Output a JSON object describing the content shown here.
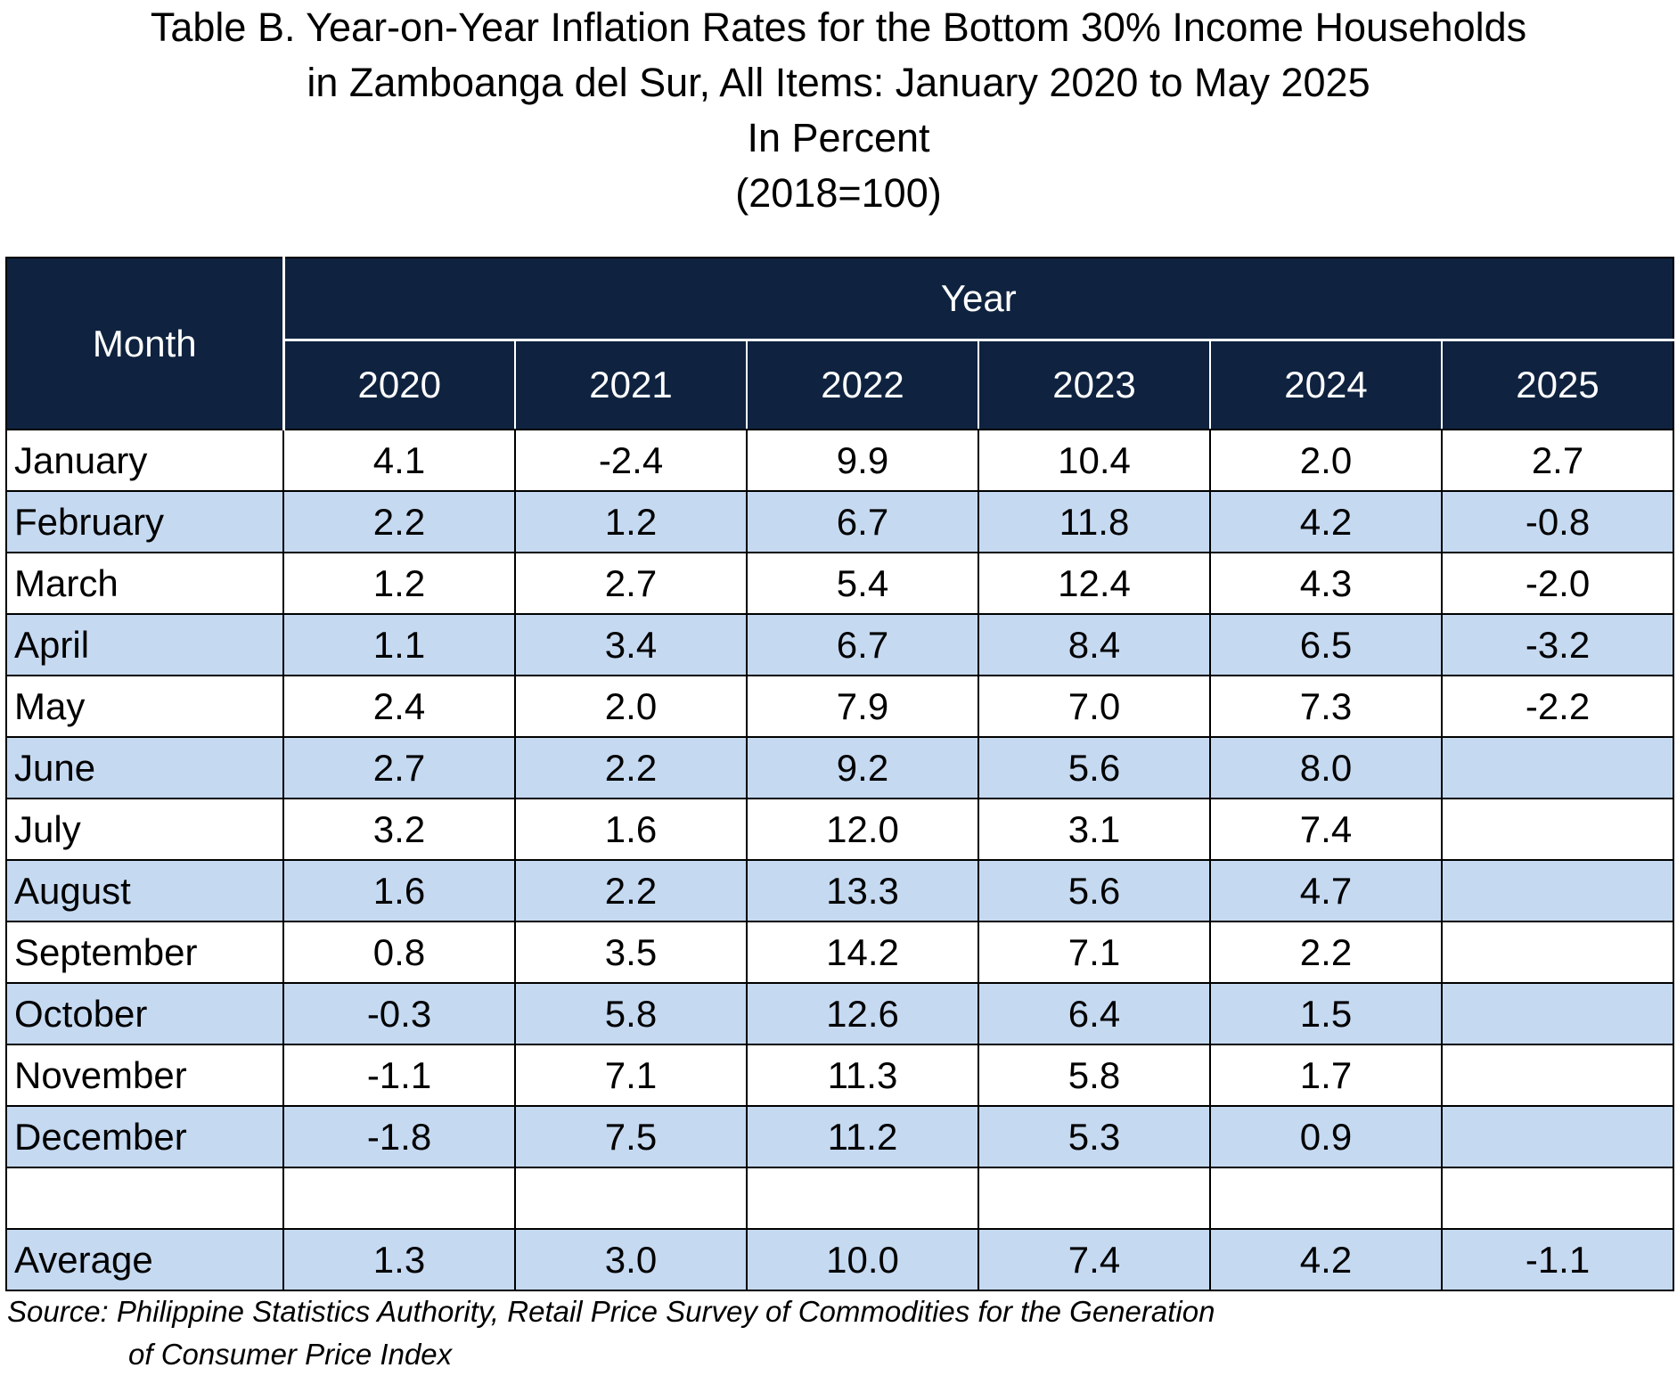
{
  "title": {
    "line1": "Table B. Year-on-Year Inflation Rates for the Bottom 30% Income Households",
    "line2": "in Zamboanga del Sur, All Items: January 2020 to May 2025",
    "line3": "In Percent",
    "line4": "(2018=100)"
  },
  "table": {
    "month_header": "Month",
    "year_header": "Year",
    "years": [
      "2020",
      "2021",
      "2022",
      "2023",
      "2024",
      "2025"
    ],
    "rows": [
      {
        "month": "January",
        "values": [
          "4.1",
          "-2.4",
          "9.9",
          "10.4",
          "2.0",
          "2.7"
        ]
      },
      {
        "month": "February",
        "values": [
          "2.2",
          "1.2",
          "6.7",
          "11.8",
          "4.2",
          "-0.8"
        ]
      },
      {
        "month": "March",
        "values": [
          "1.2",
          "2.7",
          "5.4",
          "12.4",
          "4.3",
          "-2.0"
        ]
      },
      {
        "month": "April",
        "values": [
          "1.1",
          "3.4",
          "6.7",
          "8.4",
          "6.5",
          "-3.2"
        ]
      },
      {
        "month": "May",
        "values": [
          "2.4",
          "2.0",
          "7.9",
          "7.0",
          "7.3",
          "-2.2"
        ]
      },
      {
        "month": "June",
        "values": [
          "2.7",
          "2.2",
          "9.2",
          "5.6",
          "8.0",
          ""
        ]
      },
      {
        "month": "July",
        "values": [
          "3.2",
          "1.6",
          "12.0",
          "3.1",
          "7.4",
          ""
        ]
      },
      {
        "month": "August",
        "values": [
          "1.6",
          "2.2",
          "13.3",
          "5.6",
          "4.7",
          ""
        ]
      },
      {
        "month": "September",
        "values": [
          "0.8",
          "3.5",
          "14.2",
          "7.1",
          "2.2",
          ""
        ]
      },
      {
        "month": "October",
        "values": [
          "-0.3",
          "5.8",
          "12.6",
          "6.4",
          "1.5",
          ""
        ]
      },
      {
        "month": "November",
        "values": [
          "-1.1",
          "7.1",
          "11.3",
          "5.8",
          "1.7",
          ""
        ]
      },
      {
        "month": "December",
        "values": [
          "-1.8",
          "7.5",
          "11.2",
          "5.3",
          "0.9",
          ""
        ]
      }
    ],
    "average": {
      "month": "Average",
      "values": [
        "1.3",
        "3.0",
        "10.0",
        "7.4",
        "4.2",
        "-1.1"
      ]
    }
  },
  "source": {
    "line1": "Source: Philippine Statistics Authority, Retail Price Survey of Commodities for the Generation",
    "line2": "of Consumer Price Index"
  },
  "colors": {
    "header_bg": "#0f2340",
    "row_shade": "#c5d9f1"
  }
}
